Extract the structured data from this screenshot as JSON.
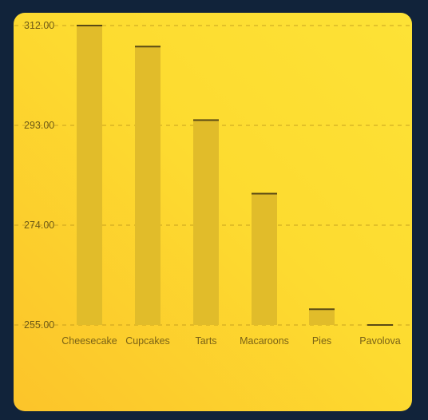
{
  "chart_data": {
    "type": "bar",
    "title": "",
    "xlabel": "",
    "ylabel": "",
    "categories": [
      "Cheesecake",
      "Cupcakes",
      "Tarts",
      "Macaroons",
      "Pies",
      "Pavolova"
    ],
    "values": [
      312,
      308,
      294,
      280,
      258,
      255
    ],
    "ylim": [
      255,
      312
    ],
    "yticks": [
      "312.00",
      "293.00",
      "274.00",
      "255.00"
    ],
    "ytick_values": [
      312,
      293,
      274,
      255
    ],
    "grid": true,
    "colors": {
      "bar": "#e1bc2a",
      "bar_top": "#5a4a14",
      "grid": "#b58f18"
    }
  }
}
